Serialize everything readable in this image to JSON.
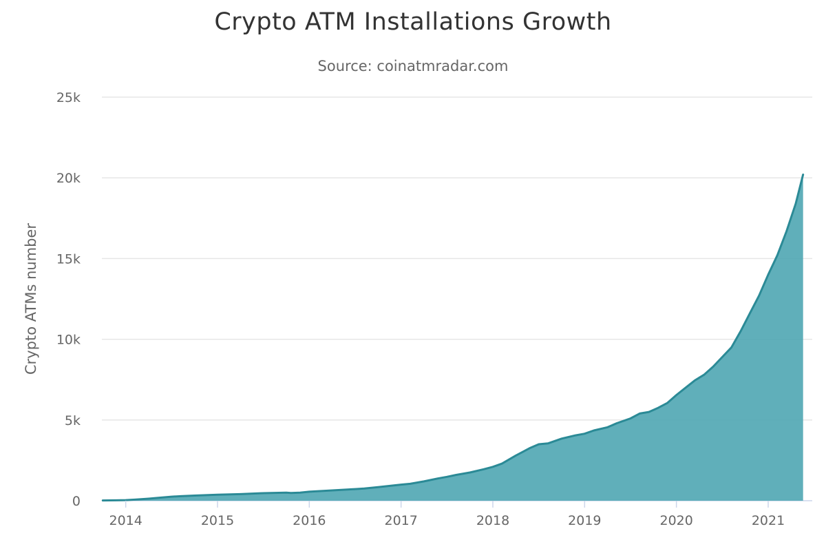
{
  "title": "Crypto ATM Installations Growth",
  "subtitle": "Source: coinatmradar.com",
  "colors": {
    "area_fill": "#4fa6b3",
    "line": "#2b8a96",
    "grid": "#e6e6e6",
    "text": "#333333",
    "muted_text": "#666666"
  },
  "chart_data": {
    "type": "area",
    "ylabel": "Crypto ATMs number",
    "xlabel": "",
    "ylim": [
      0,
      25000
    ],
    "xlim": [
      2013.74,
      2021.48
    ],
    "y_ticks": [
      0,
      5000,
      10000,
      15000,
      20000,
      25000
    ],
    "y_tick_labels": [
      "0",
      "5k",
      "10k",
      "15k",
      "20k",
      "25k"
    ],
    "x_ticks": [
      2014,
      2015,
      2016,
      2017,
      2018,
      2019,
      2020,
      2021
    ],
    "x_tick_labels": [
      "2014",
      "2015",
      "2016",
      "2017",
      "2018",
      "2019",
      "2020",
      "2021"
    ],
    "grid": "horizontal",
    "legend": "none",
    "series": [
      {
        "x": [
          2013.75,
          2013.9,
          2014.0,
          2014.1,
          2014.25,
          2014.4,
          2014.5,
          2014.6,
          2014.75,
          2014.9,
          2015.0,
          2015.25,
          2015.5,
          2015.75,
          2015.8,
          2015.9,
          2016.0,
          2016.25,
          2016.5,
          2016.6,
          2016.75,
          2017.0,
          2017.1,
          2017.25,
          2017.4,
          2017.5,
          2017.6,
          2017.75,
          2017.9,
          2018.0,
          2018.1,
          2018.25,
          2018.4,
          2018.5,
          2018.6,
          2018.75,
          2018.9,
          2019.0,
          2019.1,
          2019.25,
          2019.35,
          2019.5,
          2019.6,
          2019.7,
          2019.8,
          2019.9,
          2020.0,
          2020.1,
          2020.2,
          2020.3,
          2020.4,
          2020.5,
          2020.6,
          2020.7,
          2020.8,
          2020.9,
          2021.0,
          2021.1,
          2021.2,
          2021.3,
          2021.38
        ],
        "y": [
          15,
          25,
          40,
          70,
          130,
          200,
          250,
          280,
          320,
          350,
          370,
          410,
          470,
          500,
          480,
          500,
          560,
          640,
          720,
          760,
          840,
          1000,
          1050,
          1200,
          1380,
          1480,
          1600,
          1750,
          1950,
          2100,
          2300,
          2800,
          3250,
          3500,
          3550,
          3850,
          4050,
          4150,
          4350,
          4550,
          4800,
          5100,
          5400,
          5500,
          5750,
          6050,
          6550,
          7000,
          7450,
          7800,
          8300,
          8900,
          9500,
          10500,
          11600,
          12700,
          14000,
          15200,
          16700,
          18400,
          20200
        ]
      }
    ]
  }
}
